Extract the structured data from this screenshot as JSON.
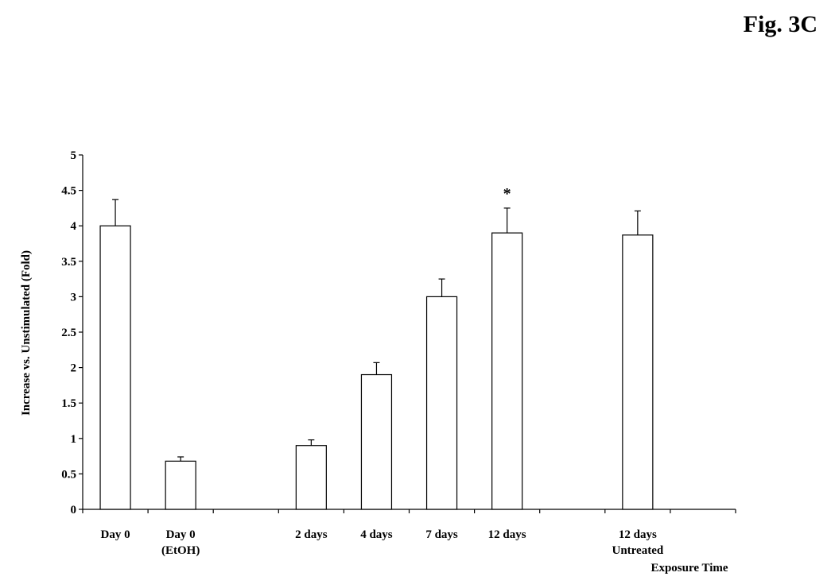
{
  "figure_label": "Fig. 3C",
  "chart_data": {
    "type": "bar",
    "title": "",
    "xlabel": "Exposure Time",
    "ylabel": "Increase vs. Unstimulated (Fold)",
    "ylim": [
      0,
      5
    ],
    "yticks": [
      "0",
      "0.5",
      "1",
      "1.5",
      "2",
      "2.5",
      "3",
      "3.5",
      "4",
      "4.5",
      "5"
    ],
    "grid": false,
    "legend": "none",
    "slot_count": 10,
    "categories": [
      {
        "slot": 0,
        "lines": [
          "Day 0"
        ],
        "value": 4.0,
        "error": 0.37
      },
      {
        "slot": 1,
        "lines": [
          "Day 0",
          "(EtOH)"
        ],
        "value": 0.68,
        "error": 0.06
      },
      {
        "slot": 3,
        "lines": [
          "2 days"
        ],
        "value": 0.9,
        "error": 0.08
      },
      {
        "slot": 4,
        "lines": [
          "4 days"
        ],
        "value": 1.9,
        "error": 0.17
      },
      {
        "slot": 5,
        "lines": [
          "7 days"
        ],
        "value": 3.0,
        "error": 0.25
      },
      {
        "slot": 6,
        "lines": [
          "12 days"
        ],
        "value": 3.9,
        "error": 0.35,
        "annotation": "*"
      },
      {
        "slot": 8,
        "lines": [
          "12 days",
          "Untreated"
        ],
        "value": 3.87,
        "error": 0.34
      }
    ],
    "bar_color": "#ffffff",
    "stroke_color": "#000000"
  }
}
